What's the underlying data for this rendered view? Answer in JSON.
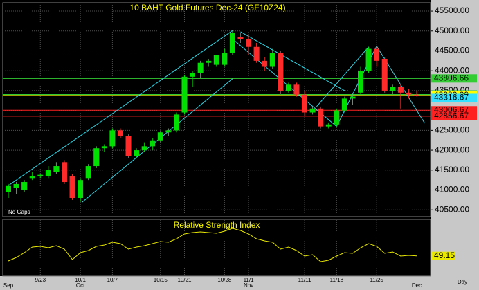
{
  "chart_data": {
    "type": "candlestick",
    "title": "10 BAHT  Gold Futures Dec-24  (GF10Z24)",
    "note": "No Gaps",
    "x_unit": "Day",
    "categories": [
      null,
      null,
      null,
      null,
      "9/23",
      null,
      null,
      null,
      null,
      "10/1",
      null,
      null,
      null,
      "10/7",
      null,
      null,
      null,
      null,
      null,
      "10/15",
      null,
      null,
      "10/21",
      null,
      null,
      null,
      null,
      "10/28",
      null,
      null,
      "11/1",
      null,
      null,
      null,
      null,
      null,
      null,
      "11/11",
      null,
      null,
      null,
      "11/18",
      null,
      null,
      null,
      null,
      "11/25",
      null,
      null,
      null,
      null,
      null
    ],
    "months": [
      "Sep",
      null,
      null,
      null,
      null,
      null,
      null,
      null,
      null,
      "Oct",
      null,
      null,
      null,
      null,
      null,
      null,
      null,
      null,
      null,
      null,
      null,
      null,
      null,
      null,
      null,
      null,
      null,
      null,
      null,
      null,
      "Nov",
      null,
      null,
      null,
      null,
      null,
      null,
      null,
      null,
      null,
      null,
      null,
      null,
      null,
      null,
      null,
      null,
      null,
      null,
      null,
      null,
      "Dec"
    ],
    "open": [
      40950,
      41050,
      41000,
      41300,
      41350,
      41350,
      41450,
      41700,
      41350,
      40800,
      41300,
      41600,
      42050,
      42100,
      42500,
      42350,
      41850,
      42000,
      42100,
      42250,
      42450,
      42500,
      42950,
      43850,
      43950,
      44200,
      44150,
      44150,
      44450,
      44850,
      44800,
      44600,
      44250,
      44100,
      44450,
      43500,
      43650,
      43400,
      42950,
      43050,
      42600,
      42650,
      43000,
      43300,
      43450,
      44000,
      44550,
      44300,
      43500,
      43600,
      43450,
      43400
    ],
    "high": [
      41150,
      41200,
      41250,
      41450,
      41400,
      41600,
      41700,
      41750,
      41400,
      41300,
      41650,
      42100,
      42150,
      42550,
      42550,
      42400,
      42050,
      42200,
      42300,
      42500,
      42550,
      42950,
      43900,
      44000,
      44250,
      44300,
      44400,
      44550,
      45000,
      44950,
      44900,
      44700,
      44350,
      44550,
      44500,
      43700,
      43700,
      43500,
      43100,
      43100,
      42700,
      43050,
      43350,
      43400,
      44100,
      44600,
      44600,
      44350,
      43650,
      43650,
      43550,
      43500
    ],
    "low": [
      40800,
      40900,
      40950,
      41250,
      41300,
      41300,
      41400,
      41150,
      40750,
      40700,
      41250,
      41550,
      41950,
      42050,
      42300,
      41800,
      41800,
      41950,
      42000,
      42200,
      42350,
      42450,
      42900,
      43600,
      43800,
      44100,
      44100,
      44100,
      44400,
      44700,
      44400,
      44200,
      44000,
      44050,
      43400,
      43450,
      43350,
      42850,
      42900,
      42550,
      42550,
      42600,
      42950,
      43150,
      43400,
      43950,
      44100,
      43450,
      43400,
      43050,
      43300,
      43350
    ],
    "close": [
      41100,
      41150,
      41200,
      41350,
      41380,
      41500,
      41600,
      41200,
      40800,
      41250,
      41600,
      42050,
      42100,
      42500,
      42350,
      41850,
      42000,
      42100,
      42250,
      42450,
      42500,
      42900,
      43850,
      43950,
      44200,
      44250,
      44400,
      44450,
      44950,
      44800,
      44600,
      44250,
      44100,
      44450,
      43500,
      43650,
      43400,
      42950,
      43050,
      42600,
      42650,
      43000,
      43300,
      43350,
      44000,
      44550,
      44250,
      43500,
      43600,
      43450,
      43400,
      43380
    ],
    "up_color": "#00e000",
    "down_color": "#ff2a2a",
    "ylim": [
      40330,
      45710
    ],
    "yticks": [
      {
        "value": 40500,
        "label": "40500.00"
      },
      {
        "value": 41000,
        "label": "41000.00"
      },
      {
        "value": 41500,
        "label": "41500.00"
      },
      {
        "value": 42000,
        "label": "42000.00"
      },
      {
        "value": 42500,
        "label": "42500.00"
      },
      {
        "value": 43000,
        "label": "43000.00"
      },
      {
        "value": 43500,
        "label": "43500.00"
      },
      {
        "value": 44000,
        "label": "44000.00"
      },
      {
        "value": 44500,
        "label": "44500.00"
      },
      {
        "value": 45000,
        "label": "45000.00"
      },
      {
        "value": 45500,
        "label": "45500.00"
      }
    ],
    "grid": true,
    "levels": [
      {
        "value": 43806.66,
        "color": "#33cc33"
      },
      {
        "value": 43403.33,
        "color": "#33cc33"
      },
      {
        "value": 43380,
        "label": "43380.00",
        "color": "#ffff00"
      },
      {
        "value": 43316.67,
        "color": "#33e0ff"
      },
      {
        "value": 43006.67,
        "color": "#ff2020"
      },
      {
        "value": 42856.67,
        "color": "#ff2020"
      }
    ],
    "trendline_color": "#33d6e6",
    "trendlines": [
      {
        "x": [
          0,
          28
        ],
        "y": [
          41110,
          45010
        ]
      },
      {
        "x": [
          9.2,
          28
        ],
        "y": [
          40690,
          43800
        ]
      },
      {
        "x": [
          29,
          42
        ],
        "y": [
          44980,
          43500
        ]
      },
      {
        "x": [
          28,
          41
        ],
        "y": [
          44800,
          42600
        ]
      },
      {
        "x": [
          41,
          46
        ],
        "y": [
          42600,
          44620
        ]
      },
      {
        "x": [
          38.5,
          45
        ],
        "y": [
          43100,
          44600
        ]
      },
      {
        "x": [
          46,
          52
        ],
        "y": [
          44620,
          42680
        ]
      }
    ],
    "rsi": {
      "title": "Relative Strength Index",
      "color": "#e8e800",
      "ylim": [
        35,
        75
      ],
      "values": [
        45.5,
        48,
        51.5,
        55.5,
        56,
        55,
        56.5,
        54,
        46.5,
        51.5,
        53,
        56,
        57,
        59,
        58,
        54,
        55.5,
        56.5,
        58,
        59.5,
        59,
        61.5,
        65,
        66,
        66.5,
        66,
        65.5,
        67,
        69,
        67.5,
        65,
        61.5,
        60,
        59,
        54,
        55.5,
        53,
        49,
        50,
        45,
        46,
        49,
        51.5,
        51,
        55,
        58,
        56,
        51,
        52,
        49,
        49.5,
        49.15
      ]
    }
  }
}
